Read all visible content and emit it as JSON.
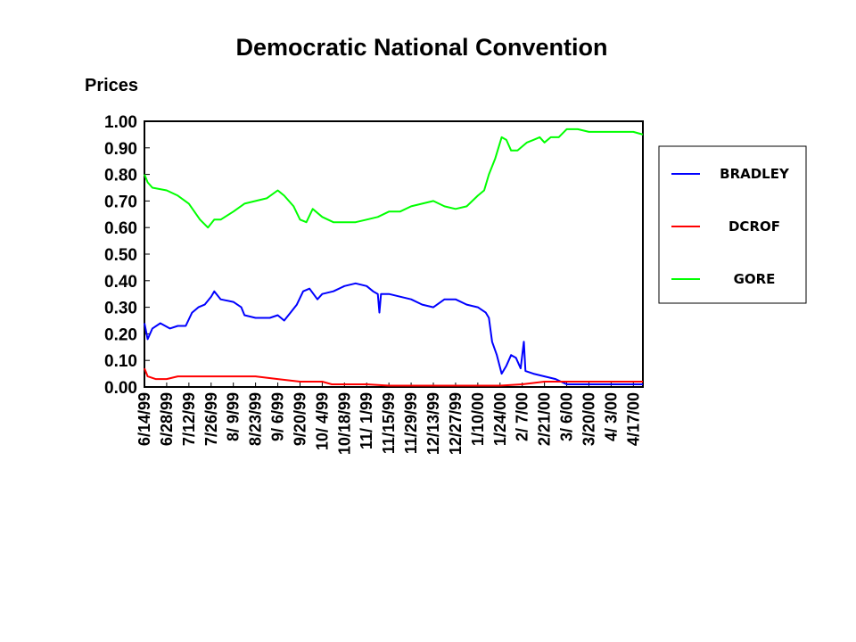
{
  "chart_data": {
    "type": "line",
    "title": "Democratic National Convention",
    "ylabel": "Prices",
    "xlabel": "",
    "ylim": [
      0,
      1
    ],
    "yticks": [
      "0.00",
      "0.10",
      "0.20",
      "0.30",
      "0.40",
      "0.50",
      "0.60",
      "0.70",
      "0.80",
      "0.90",
      "1.00"
    ],
    "x_start": "1999-06-14",
    "x_end": "2000-04-23",
    "xticks": [
      {
        "label": "6/14/99",
        "date": "1999-06-14"
      },
      {
        "label": "6/28/99",
        "date": "1999-06-28"
      },
      {
        "label": "7/12/99",
        "date": "1999-07-12"
      },
      {
        "label": "7/26/99",
        "date": "1999-07-26"
      },
      {
        "label": "8/ 9/99",
        "date": "1999-08-09"
      },
      {
        "label": "8/23/99",
        "date": "1999-08-23"
      },
      {
        "label": "9/ 6/99",
        "date": "1999-09-06"
      },
      {
        "label": "9/20/99",
        "date": "1999-09-20"
      },
      {
        "label": "10/ 4/99",
        "date": "1999-10-04"
      },
      {
        "label": "10/18/99",
        "date": "1999-10-18"
      },
      {
        "label": "11/ 1/99",
        "date": "1999-11-01"
      },
      {
        "label": "11/15/99",
        "date": "1999-11-15"
      },
      {
        "label": "11/29/99",
        "date": "1999-11-29"
      },
      {
        "label": "12/13/99",
        "date": "1999-12-13"
      },
      {
        "label": "12/27/99",
        "date": "1999-12-27"
      },
      {
        "label": "1/10/00",
        "date": "2000-01-10"
      },
      {
        "label": "1/24/00",
        "date": "2000-01-24"
      },
      {
        "label": "2/ 7/00",
        "date": "2000-02-07"
      },
      {
        "label": "2/21/00",
        "date": "2000-02-21"
      },
      {
        "label": "3/ 6/00",
        "date": "2000-03-06"
      },
      {
        "label": "3/20/00",
        "date": "2000-03-20"
      },
      {
        "label": "4/ 3/00",
        "date": "2000-04-03"
      },
      {
        "label": "4/17/00",
        "date": "2000-04-17"
      }
    ],
    "legend_position": "right",
    "grid": false,
    "series": [
      {
        "name": "BRADLEY",
        "color": "#0000ff",
        "points": [
          [
            "1999-06-14",
            0.24
          ],
          [
            "1999-06-16",
            0.18
          ],
          [
            "1999-06-19",
            0.22
          ],
          [
            "1999-06-24",
            0.24
          ],
          [
            "1999-06-30",
            0.22
          ],
          [
            "1999-07-05",
            0.23
          ],
          [
            "1999-07-10",
            0.23
          ],
          [
            "1999-07-14",
            0.28
          ],
          [
            "1999-07-18",
            0.3
          ],
          [
            "1999-07-22",
            0.31
          ],
          [
            "1999-07-26",
            0.34
          ],
          [
            "1999-07-28",
            0.36
          ],
          [
            "1999-08-01",
            0.33
          ],
          [
            "1999-08-09",
            0.32
          ],
          [
            "1999-08-14",
            0.3
          ],
          [
            "1999-08-16",
            0.27
          ],
          [
            "1999-08-23",
            0.26
          ],
          [
            "1999-09-01",
            0.26
          ],
          [
            "1999-09-06",
            0.27
          ],
          [
            "1999-09-10",
            0.25
          ],
          [
            "1999-09-14",
            0.28
          ],
          [
            "1999-09-18",
            0.31
          ],
          [
            "1999-09-22",
            0.36
          ],
          [
            "1999-09-26",
            0.37
          ],
          [
            "1999-10-01",
            0.33
          ],
          [
            "1999-10-04",
            0.35
          ],
          [
            "1999-10-11",
            0.36
          ],
          [
            "1999-10-18",
            0.38
          ],
          [
            "1999-10-25",
            0.39
          ],
          [
            "1999-11-01",
            0.38
          ],
          [
            "1999-11-05",
            0.36
          ],
          [
            "1999-11-08",
            0.35
          ],
          [
            "1999-11-09",
            0.28
          ],
          [
            "1999-11-10",
            0.35
          ],
          [
            "1999-11-15",
            0.35
          ],
          [
            "1999-11-22",
            0.34
          ],
          [
            "1999-11-29",
            0.33
          ],
          [
            "1999-12-06",
            0.31
          ],
          [
            "1999-12-13",
            0.3
          ],
          [
            "1999-12-20",
            0.33
          ],
          [
            "1999-12-27",
            0.33
          ],
          [
            "2000-01-03",
            0.31
          ],
          [
            "2000-01-10",
            0.3
          ],
          [
            "2000-01-15",
            0.28
          ],
          [
            "2000-01-17",
            0.26
          ],
          [
            "2000-01-19",
            0.17
          ],
          [
            "2000-01-22",
            0.12
          ],
          [
            "2000-01-25",
            0.05
          ],
          [
            "2000-01-28",
            0.08
          ],
          [
            "2000-01-31",
            0.12
          ],
          [
            "2000-02-03",
            0.11
          ],
          [
            "2000-02-06",
            0.07
          ],
          [
            "2000-02-08",
            0.17
          ],
          [
            "2000-02-09",
            0.06
          ],
          [
            "2000-02-14",
            0.05
          ],
          [
            "2000-02-21",
            0.04
          ],
          [
            "2000-02-28",
            0.03
          ],
          [
            "2000-03-06",
            0.01
          ],
          [
            "2000-03-20",
            0.01
          ],
          [
            "2000-04-03",
            0.01
          ],
          [
            "2000-04-17",
            0.01
          ],
          [
            "2000-04-23",
            0.01
          ]
        ]
      },
      {
        "name": "DCROF",
        "color": "#ff0000",
        "points": [
          [
            "1999-06-14",
            0.07
          ],
          [
            "1999-06-16",
            0.04
          ],
          [
            "1999-06-21",
            0.03
          ],
          [
            "1999-06-28",
            0.03
          ],
          [
            "1999-07-05",
            0.04
          ],
          [
            "1999-07-12",
            0.04
          ],
          [
            "1999-07-26",
            0.04
          ],
          [
            "1999-08-09",
            0.04
          ],
          [
            "1999-08-23",
            0.04
          ],
          [
            "1999-09-06",
            0.03
          ],
          [
            "1999-09-20",
            0.02
          ],
          [
            "1999-10-04",
            0.02
          ],
          [
            "1999-10-10",
            0.01
          ],
          [
            "1999-10-18",
            0.01
          ],
          [
            "1999-11-01",
            0.01
          ],
          [
            "1999-11-15",
            0.005
          ],
          [
            "1999-11-29",
            0.005
          ],
          [
            "1999-12-13",
            0.005
          ],
          [
            "1999-12-27",
            0.005
          ],
          [
            "2000-01-10",
            0.005
          ],
          [
            "2000-01-24",
            0.005
          ],
          [
            "2000-02-07",
            0.01
          ],
          [
            "2000-02-21",
            0.02
          ],
          [
            "2000-03-06",
            0.02
          ],
          [
            "2000-03-20",
            0.02
          ],
          [
            "2000-04-03",
            0.02
          ],
          [
            "2000-04-17",
            0.02
          ],
          [
            "2000-04-23",
            0.02
          ]
        ]
      },
      {
        "name": "GORE",
        "color": "#00ff00",
        "points": [
          [
            "1999-06-14",
            0.8
          ],
          [
            "1999-06-16",
            0.77
          ],
          [
            "1999-06-19",
            0.75
          ],
          [
            "1999-06-28",
            0.74
          ],
          [
            "1999-07-05",
            0.72
          ],
          [
            "1999-07-12",
            0.69
          ],
          [
            "1999-07-19",
            0.63
          ],
          [
            "1999-07-24",
            0.6
          ],
          [
            "1999-07-28",
            0.63
          ],
          [
            "1999-08-01",
            0.63
          ],
          [
            "1999-08-09",
            0.66
          ],
          [
            "1999-08-16",
            0.69
          ],
          [
            "1999-08-23",
            0.7
          ],
          [
            "1999-08-30",
            0.71
          ],
          [
            "1999-09-06",
            0.74
          ],
          [
            "1999-09-10",
            0.72
          ],
          [
            "1999-09-16",
            0.68
          ],
          [
            "1999-09-20",
            0.63
          ],
          [
            "1999-09-24",
            0.62
          ],
          [
            "1999-09-28",
            0.67
          ],
          [
            "1999-10-04",
            0.64
          ],
          [
            "1999-10-11",
            0.62
          ],
          [
            "1999-10-18",
            0.62
          ],
          [
            "1999-10-25",
            0.62
          ],
          [
            "1999-11-01",
            0.63
          ],
          [
            "1999-11-08",
            0.64
          ],
          [
            "1999-11-15",
            0.66
          ],
          [
            "1999-11-22",
            0.66
          ],
          [
            "1999-11-29",
            0.68
          ],
          [
            "1999-12-06",
            0.69
          ],
          [
            "1999-12-13",
            0.7
          ],
          [
            "1999-12-20",
            0.68
          ],
          [
            "1999-12-27",
            0.67
          ],
          [
            "2000-01-03",
            0.68
          ],
          [
            "2000-01-10",
            0.72
          ],
          [
            "2000-01-14",
            0.74
          ],
          [
            "2000-01-17",
            0.8
          ],
          [
            "2000-01-21",
            0.86
          ],
          [
            "2000-01-25",
            0.94
          ],
          [
            "2000-01-28",
            0.93
          ],
          [
            "2000-01-31",
            0.89
          ],
          [
            "2000-02-04",
            0.89
          ],
          [
            "2000-02-10",
            0.92
          ],
          [
            "2000-02-14",
            0.93
          ],
          [
            "2000-02-18",
            0.94
          ],
          [
            "2000-02-21",
            0.92
          ],
          [
            "2000-02-25",
            0.94
          ],
          [
            "2000-03-01",
            0.94
          ],
          [
            "2000-03-06",
            0.97
          ],
          [
            "2000-03-13",
            0.97
          ],
          [
            "2000-03-20",
            0.96
          ],
          [
            "2000-04-03",
            0.96
          ],
          [
            "2000-04-17",
            0.96
          ],
          [
            "2000-04-23",
            0.95
          ]
        ]
      }
    ]
  }
}
